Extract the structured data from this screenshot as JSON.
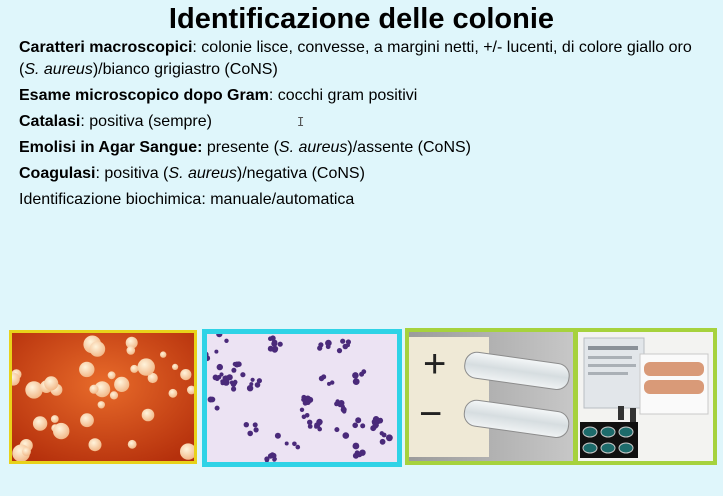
{
  "title": "Identificazione delle colonie",
  "lines": [
    {
      "label": "Caratteri macroscopici",
      "t1": ": colonie lisce, convesse, a margini netti, +/- lucenti, di colore giallo oro (",
      "i1": "S. aureus",
      "t2": ")/bianco grigiastro (CoNS)"
    },
    {
      "label": "Esame microscopico dopo Gram",
      "t1": ": cocchi gram positivi"
    },
    {
      "label": "Catalasi",
      "t1": ": positiva (sempre)"
    },
    {
      "label": "Emolisi in Agar Sangue:",
      "t1": " presente (",
      "i1": "S. aureus",
      "t2": ")/assente (CoNS)"
    },
    {
      "label": "Coagulasi",
      "t1": ": positiva (",
      "i1": "S. aureus",
      "t2": ")/negativa (CoNS)"
    },
    {
      "label": "",
      "t1": "Identificazione biochimica: manuale/automatica"
    }
  ],
  "images": {
    "tube_plus": "+",
    "tube_minus": "−"
  },
  "colors": {
    "background": "#dff6fb",
    "frame_yellow": "#e8d21a",
    "frame_cyan": "#2fd3e6",
    "frame_green": "#a6d23d"
  }
}
